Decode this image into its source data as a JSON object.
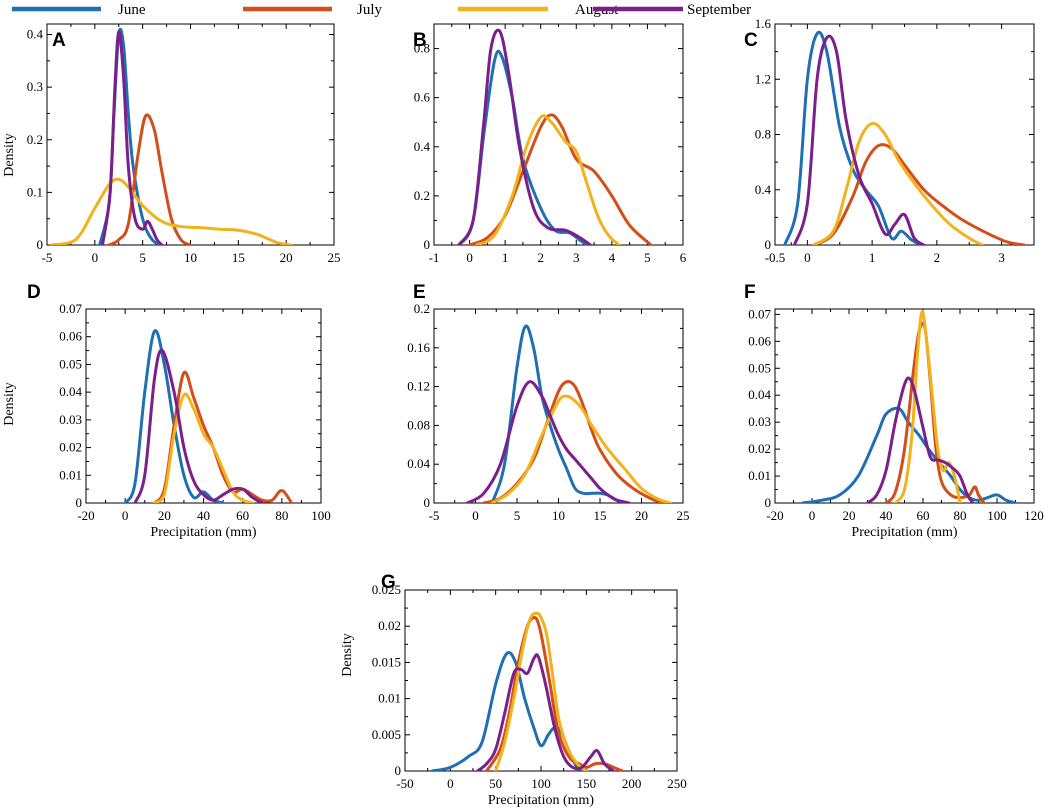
{
  "legend": [
    {
      "name": "June",
      "color": "#1f6fb4"
    },
    {
      "name": "July",
      "color": "#d24e1a"
    },
    {
      "name": "August",
      "color": "#f2b21c"
    },
    {
      "name": "September",
      "color": "#7b1f8a"
    }
  ],
  "chart_data": [
    {
      "panel": "A",
      "type": "line",
      "xlabel": "",
      "ylabel": "Density",
      "xlim": [
        -5,
        25
      ],
      "ylim": [
        0,
        0.42
      ],
      "xticks": [
        "-5",
        "0",
        "5",
        "10",
        "15",
        "20",
        "25"
      ],
      "yticks": [
        "0",
        "0.1",
        "0.2",
        "0.3",
        "0.4"
      ],
      "series": [
        {
          "name": "June",
          "x": [
            0.5,
            1.5,
            2,
            2.5,
            3,
            3.5,
            4,
            5,
            6,
            7
          ],
          "y": [
            0,
            0.08,
            0.25,
            0.4,
            0.38,
            0.25,
            0.15,
            0.05,
            0.01,
            0
          ]
        },
        {
          "name": "July",
          "x": [
            1.5,
            2.5,
            3.5,
            4.5,
            5.3,
            6.2,
            7,
            8,
            9,
            10
          ],
          "y": [
            0,
            0.01,
            0.04,
            0.17,
            0.245,
            0.22,
            0.14,
            0.05,
            0.01,
            0
          ]
        },
        {
          "name": "August",
          "x": [
            -4.5,
            -2,
            0,
            1.5,
            2.5,
            3.5,
            5,
            7,
            9,
            11,
            13,
            15,
            17,
            19,
            20.5
          ],
          "y": [
            0,
            0.01,
            0.07,
            0.115,
            0.125,
            0.11,
            0.075,
            0.045,
            0.035,
            0.033,
            0.03,
            0.028,
            0.02,
            0.005,
            0
          ]
        },
        {
          "name": "September",
          "x": [
            0.8,
            1.6,
            2.1,
            2.5,
            3,
            3.5,
            4.2,
            5,
            5.5,
            6,
            6.5,
            7
          ],
          "y": [
            0,
            0.1,
            0.3,
            0.405,
            0.32,
            0.15,
            0.05,
            0.03,
            0.045,
            0.03,
            0.01,
            0
          ]
        }
      ]
    },
    {
      "panel": "B",
      "type": "line",
      "xlabel": "",
      "ylabel": "",
      "xlim": [
        -1,
        6
      ],
      "ylim": [
        0,
        0.9
      ],
      "xticks": [
        "-1",
        "0",
        "1",
        "2",
        "3",
        "4",
        "5",
        "6"
      ],
      "yticks": [
        "0",
        "0.2",
        "0.4",
        "0.6",
        "0.8"
      ],
      "series": [
        {
          "name": "June",
          "x": [
            -0.3,
            0.1,
            0.4,
            0.7,
            0.9,
            1.2,
            1.5,
            2,
            2.4,
            2.8,
            3.1,
            3.3
          ],
          "y": [
            0,
            0.1,
            0.45,
            0.75,
            0.77,
            0.6,
            0.35,
            0.15,
            0.06,
            0.05,
            0.02,
            0
          ]
        },
        {
          "name": "July",
          "x": [
            0,
            0.5,
            1,
            1.5,
            2,
            2.3,
            2.6,
            3,
            3.5,
            4,
            4.5,
            5.1
          ],
          "y": [
            0,
            0.03,
            0.12,
            0.3,
            0.48,
            0.53,
            0.48,
            0.35,
            0.3,
            0.2,
            0.08,
            0
          ]
        },
        {
          "name": "August",
          "x": [
            0.2,
            0.7,
            1.2,
            1.6,
            2,
            2.3,
            2.7,
            3,
            3.3,
            3.6,
            3.9,
            4.2
          ],
          "y": [
            0,
            0.04,
            0.2,
            0.4,
            0.52,
            0.5,
            0.42,
            0.38,
            0.25,
            0.12,
            0.04,
            0
          ]
        },
        {
          "name": "September",
          "x": [
            -0.3,
            0.1,
            0.4,
            0.6,
            0.85,
            1.1,
            1.4,
            1.8,
            2.2,
            2.7,
            3.1,
            3.4
          ],
          "y": [
            0,
            0.1,
            0.5,
            0.8,
            0.87,
            0.7,
            0.4,
            0.15,
            0.07,
            0.06,
            0.03,
            0
          ]
        }
      ]
    },
    {
      "panel": "C",
      "type": "line",
      "xlabel": "",
      "ylabel": "",
      "xlim": [
        -0.5,
        3.5
      ],
      "ylim": [
        0,
        1.6
      ],
      "xticks": [
        "-0.5",
        "0",
        "1",
        "2",
        "3"
      ],
      "tick_values": [
        -0.5,
        0,
        1,
        2,
        3
      ],
      "yticks": [
        "0",
        "0.4",
        "0.8",
        "1.2",
        "1.6"
      ],
      "series": [
        {
          "name": "June",
          "x": [
            -0.35,
            -0.15,
            0,
            0.15,
            0.3,
            0.5,
            0.7,
            0.9,
            1.1,
            1.3,
            1.45,
            1.6,
            1.75
          ],
          "y": [
            0,
            0.3,
            1.2,
            1.53,
            1.4,
            0.85,
            0.55,
            0.4,
            0.28,
            0.05,
            0.1,
            0.04,
            0
          ]
        },
        {
          "name": "July",
          "x": [
            0.1,
            0.4,
            0.7,
            0.9,
            1.1,
            1.3,
            1.5,
            1.8,
            2.1,
            2.4,
            2.8,
            3.1,
            3.35
          ],
          "y": [
            0,
            0.08,
            0.35,
            0.6,
            0.72,
            0.7,
            0.58,
            0.4,
            0.28,
            0.18,
            0.08,
            0.02,
            0
          ]
        },
        {
          "name": "August",
          "x": [
            0.1,
            0.4,
            0.6,
            0.8,
            1,
            1.2,
            1.4,
            1.6,
            1.9,
            2.2,
            2.5,
            2.7
          ],
          "y": [
            0,
            0.1,
            0.4,
            0.75,
            0.88,
            0.8,
            0.62,
            0.48,
            0.3,
            0.15,
            0.05,
            0
          ]
        },
        {
          "name": "September",
          "x": [
            -0.2,
            0,
            0.15,
            0.3,
            0.45,
            0.6,
            0.8,
            1,
            1.2,
            1.35,
            1.5,
            1.65,
            1.8
          ],
          "y": [
            0,
            0.3,
            1.2,
            1.5,
            1.4,
            0.9,
            0.5,
            0.3,
            0.08,
            0.15,
            0.22,
            0.05,
            0
          ]
        }
      ]
    },
    {
      "panel": "D",
      "type": "line",
      "xlabel": "Precipitation (mm)",
      "ylabel": "Density",
      "xlim": [
        -20,
        100
      ],
      "ylim": [
        0,
        0.07
      ],
      "xticks": [
        "-20",
        "0",
        "20",
        "40",
        "60",
        "80",
        "100"
      ],
      "yticks": [
        "0",
        "0.01",
        "0.02",
        "0.03",
        "0.04",
        "0.05",
        "0.06",
        "0.07"
      ],
      "series": [
        {
          "name": "June",
          "x": [
            0,
            5,
            10,
            15,
            20,
            25,
            30,
            35,
            40,
            45,
            50
          ],
          "y": [
            0,
            0.007,
            0.04,
            0.062,
            0.05,
            0.028,
            0.01,
            0.002,
            0.004,
            0.001,
            0
          ]
        },
        {
          "name": "July",
          "x": [
            15,
            20,
            25,
            30,
            35,
            40,
            45,
            50,
            55,
            60,
            65,
            70,
            75,
            80,
            85
          ],
          "y": [
            0,
            0.005,
            0.028,
            0.047,
            0.038,
            0.028,
            0.02,
            0.01,
            0.004,
            0.005,
            0.003,
            0.001,
            0.001,
            0.0045,
            0
          ]
        },
        {
          "name": "August",
          "x": [
            15,
            20,
            25,
            30,
            35,
            40,
            45,
            50,
            55,
            60,
            65
          ],
          "y": [
            0,
            0.003,
            0.025,
            0.039,
            0.034,
            0.025,
            0.02,
            0.012,
            0.004,
            0.001,
            0
          ]
        },
        {
          "name": "September",
          "x": [
            5,
            10,
            15,
            19,
            25,
            30,
            35,
            40,
            45,
            50,
            55,
            60,
            65,
            70
          ],
          "y": [
            0,
            0.01,
            0.045,
            0.055,
            0.04,
            0.02,
            0.008,
            0.003,
            0.001,
            0.003,
            0.005,
            0.005,
            0.002,
            0
          ]
        }
      ]
    },
    {
      "panel": "E",
      "type": "line",
      "xlabel": "",
      "ylabel": "",
      "xlim": [
        -5,
        25
      ],
      "ylim": [
        0,
        0.2
      ],
      "xticks": [
        "-5",
        "0",
        "5",
        "10",
        "15",
        "20",
        "25"
      ],
      "yticks": [
        "0",
        "0.04",
        "0.08",
        "0.12",
        "0.16",
        "0.2"
      ],
      "series": [
        {
          "name": "June",
          "x": [
            2,
            3.5,
            5,
            6,
            7,
            8,
            9,
            10,
            11,
            12,
            13,
            14,
            15,
            16,
            17,
            18
          ],
          "y": [
            0,
            0.04,
            0.14,
            0.182,
            0.16,
            0.11,
            0.08,
            0.055,
            0.035,
            0.015,
            0.01,
            0.01,
            0.01,
            0.008,
            0.003,
            0
          ]
        },
        {
          "name": "July",
          "x": [
            1,
            3,
            5,
            7,
            8.5,
            10,
            11,
            12,
            13,
            14,
            15,
            17,
            19,
            21,
            22.5
          ],
          "y": [
            0,
            0.005,
            0.02,
            0.045,
            0.08,
            0.115,
            0.125,
            0.12,
            0.1,
            0.075,
            0.055,
            0.03,
            0.015,
            0.005,
            0
          ]
        },
        {
          "name": "August",
          "x": [
            2,
            4,
            6,
            8,
            10,
            11,
            12,
            13,
            14,
            16,
            18,
            20,
            22,
            23.5
          ],
          "y": [
            0,
            0.01,
            0.03,
            0.07,
            0.105,
            0.11,
            0.105,
            0.095,
            0.08,
            0.055,
            0.035,
            0.015,
            0.004,
            0
          ]
        },
        {
          "name": "September",
          "x": [
            -1,
            1,
            3,
            5,
            6.5,
            8,
            9,
            10,
            11,
            12,
            13,
            14,
            15,
            16,
            17,
            18.5
          ],
          "y": [
            0,
            0.01,
            0.04,
            0.1,
            0.125,
            0.11,
            0.09,
            0.07,
            0.055,
            0.045,
            0.035,
            0.025,
            0.015,
            0.008,
            0.003,
            0
          ]
        }
      ]
    },
    {
      "panel": "F",
      "type": "line",
      "xlabel": "Precipitation (mm)",
      "ylabel": "",
      "xlim": [
        -20,
        120
      ],
      "ylim": [
        0,
        0.072
      ],
      "xticks": [
        "-20",
        "0",
        "20",
        "40",
        "60",
        "80",
        "100",
        "120"
      ],
      "yticks": [
        "0",
        "0.01",
        "0.02",
        "0.03",
        "0.04",
        "0.05",
        "0.06",
        "0.07"
      ],
      "series": [
        {
          "name": "June",
          "x": [
            -5,
            5,
            15,
            25,
            35,
            40,
            47,
            52,
            58,
            63,
            70,
            75,
            80,
            85,
            90,
            95,
            100,
            105,
            110
          ],
          "y": [
            0,
            0.001,
            0.003,
            0.01,
            0.025,
            0.033,
            0.035,
            0.03,
            0.025,
            0.02,
            0.014,
            0.01,
            0.005,
            0.002,
            0.001,
            0.002,
            0.003,
            0.001,
            0
          ]
        },
        {
          "name": "July",
          "x": [
            40,
            45,
            50,
            55,
            58,
            61,
            64,
            67,
            70,
            75,
            80,
            85,
            88,
            90,
            93
          ],
          "y": [
            0,
            0.004,
            0.02,
            0.05,
            0.064,
            0.065,
            0.045,
            0.02,
            0.008,
            0.003,
            0.002,
            0.003,
            0.006,
            0.003,
            0
          ]
        },
        {
          "name": "August",
          "x": [
            45,
            50,
            54,
            57,
            59.5,
            62,
            65,
            68,
            71,
            74,
            77,
            80
          ],
          "y": [
            0,
            0.005,
            0.025,
            0.055,
            0.071,
            0.06,
            0.04,
            0.02,
            0.012,
            0.015,
            0.01,
            0
          ]
        },
        {
          "name": "September",
          "x": [
            30,
            35,
            40,
            45,
            50,
            53,
            56,
            60,
            64,
            68,
            72,
            76,
            80,
            84,
            87
          ],
          "y": [
            0,
            0.003,
            0.012,
            0.03,
            0.044,
            0.046,
            0.04,
            0.028,
            0.017,
            0.016,
            0.015,
            0.013,
            0.01,
            0.003,
            0
          ]
        }
      ]
    },
    {
      "panel": "G",
      "type": "line",
      "xlabel": "Precipitation (mm)",
      "ylabel": "Density",
      "xlim": [
        -50,
        250
      ],
      "ylim": [
        0,
        0.025
      ],
      "xticks": [
        "-50",
        "0",
        "50",
        "100",
        "150",
        "200",
        "250"
      ],
      "yticks": [
        "0",
        "0.005",
        "0.01",
        "0.015",
        "0.02",
        "0.025"
      ],
      "series": [
        {
          "name": "June",
          "x": [
            -20,
            0,
            20,
            35,
            50,
            62,
            72,
            82,
            92,
            100,
            108,
            115,
            122,
            130,
            140,
            150
          ],
          "y": [
            0,
            0.0005,
            0.002,
            0.004,
            0.012,
            0.0162,
            0.015,
            0.01,
            0.006,
            0.0035,
            0.005,
            0.006,
            0.0055,
            0.003,
            0.0005,
            0
          ]
        },
        {
          "name": "July",
          "x": [
            40,
            55,
            65,
            75,
            85,
            93,
            98,
            103,
            110,
            118,
            126,
            134,
            142,
            150,
            160,
            170,
            180,
            190
          ],
          "y": [
            0,
            0.003,
            0.008,
            0.015,
            0.02,
            0.0212,
            0.02,
            0.017,
            0.012,
            0.006,
            0.003,
            0.0015,
            0.001,
            0.0005,
            0.001,
            0.001,
            0.0005,
            0
          ]
        },
        {
          "name": "August",
          "x": [
            50,
            60,
            70,
            80,
            88,
            95,
            100,
            106,
            112,
            120,
            130,
            140,
            150
          ],
          "y": [
            0,
            0.004,
            0.01,
            0.017,
            0.021,
            0.0218,
            0.0212,
            0.019,
            0.014,
            0.007,
            0.003,
            0.001,
            0
          ]
        },
        {
          "name": "September",
          "x": [
            30,
            40,
            50,
            60,
            70,
            78,
            85,
            92,
            97,
            105,
            115,
            125,
            135,
            145,
            155,
            162,
            170,
            180
          ],
          "y": [
            0,
            0.001,
            0.003,
            0.008,
            0.0135,
            0.014,
            0.0135,
            0.0155,
            0.0158,
            0.012,
            0.006,
            0.002,
            0.0005,
            0.0005,
            0.002,
            0.0028,
            0.001,
            0
          ]
        }
      ]
    }
  ]
}
